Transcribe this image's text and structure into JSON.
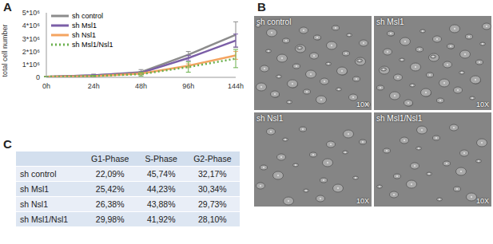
{
  "panel_labels": [
    "A",
    "B",
    "C"
  ],
  "chart_data": {
    "type": "line",
    "ylabel": "total cell number",
    "categories": [
      "0h",
      "24h",
      "48h",
      "96h",
      "144h"
    ],
    "ylim": [
      0,
      5000000
    ],
    "yticks": [
      0,
      {
        "value": 1000000,
        "label": "1*10⁶"
      },
      {
        "value": 2000000,
        "label": "2*10⁶"
      },
      {
        "value": 3000000,
        "label": "3*10⁶"
      },
      {
        "value": 4000000,
        "label": "4*10⁶"
      },
      {
        "value": 5000000,
        "label": "5*10⁶"
      }
    ],
    "grid": false,
    "legend": "upper left",
    "series": [
      {
        "name": "sh control",
        "color": "#8c8c8c",
        "line_style": "solid",
        "values": [
          50000,
          150000,
          400000,
          1750000,
          3300000
        ],
        "errors": [
          20000,
          100000,
          200000,
          250000,
          1000000
        ]
      },
      {
        "name": "sh Msl1",
        "color": "#7b5ea7",
        "line_style": "solid",
        "values": [
          50000,
          150000,
          350000,
          1500000,
          2850000
        ],
        "errors": [
          20000,
          50000,
          100000,
          200000,
          500000
        ]
      },
      {
        "name": "sh Nsl1",
        "color": "#f4a460",
        "line_style": "solid",
        "values": [
          50000,
          100000,
          300000,
          900000,
          1700000
        ],
        "errors": [
          20000,
          50000,
          100000,
          150000,
          300000
        ]
      },
      {
        "name": "sh Msl1/Nsl1",
        "color": "#6ab04c",
        "line_style": "dotted",
        "values": [
          50000,
          100000,
          250000,
          800000,
          1450000
        ],
        "errors": [
          20000,
          50000,
          150000,
          400000,
          700000
        ]
      }
    ]
  },
  "images": [
    {
      "label": "sh control",
      "magnification": "10X"
    },
    {
      "label": "sh Msl1",
      "magnification": "10X"
    },
    {
      "label": "sh Nsl1",
      "magnification": "10X"
    },
    {
      "label": "sh Msl1/Nsl1",
      "magnification": "10X"
    }
  ],
  "table": {
    "header": [
      "",
      "G1-Phase",
      "S-Phase",
      "G2-Phase"
    ],
    "rows": [
      [
        "sh control",
        "22,09%",
        "45,74%",
        "32,17%"
      ],
      [
        "sh Msl1",
        "25,42%",
        "44,23%",
        "30,34%"
      ],
      [
        "sh Nsl1",
        "26,38%",
        "43,88%",
        "29,73%"
      ],
      [
        "sh Msl1/Nsl1",
        "29,98%",
        "41,92%",
        "28,10%"
      ]
    ]
  }
}
